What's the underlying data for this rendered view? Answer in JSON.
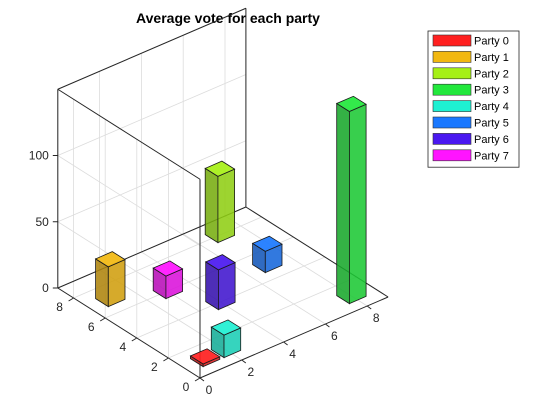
{
  "chart_data": {
    "type": "bar3",
    "title": "Average vote for each party",
    "xlabel": "",
    "ylabel": "",
    "zlabel": "",
    "xlim": [
      0,
      9
    ],
    "ylim": [
      0,
      9
    ],
    "zlim": [
      0,
      150
    ],
    "x_ticks": [
      "0",
      "2",
      "4",
      "6",
      "8"
    ],
    "y_ticks": [
      "0",
      "2",
      "4",
      "6",
      "8"
    ],
    "z_ticks": [
      "0",
      "50",
      "100"
    ],
    "grid": true,
    "legend_position": "top-right, outside",
    "series": [
      {
        "name": "Party 0",
        "x": 1,
        "y": 1,
        "value": 2,
        "color": "#ff2020"
      },
      {
        "name": "Party 1",
        "x": 1,
        "y": 7,
        "value": 30,
        "color": "#f2b810"
      },
      {
        "name": "Party 2",
        "x": 7,
        "y": 8,
        "value": 50,
        "color": "#a6f016"
      },
      {
        "name": "Party 3",
        "x": 8,
        "y": 1,
        "value": 145,
        "color": "#22e83c"
      },
      {
        "name": "Party 4",
        "x": 2,
        "y": 1,
        "value": 17,
        "color": "#1ef0d2"
      },
      {
        "name": "Party 5",
        "x": 7,
        "y": 5,
        "value": 16,
        "color": "#1a78ff"
      },
      {
        "name": "Party 6",
        "x": 4,
        "y": 4,
        "value": 30,
        "color": "#4a18f0"
      },
      {
        "name": "Party 7",
        "x": 3,
        "y": 6,
        "value": 17,
        "color": "#ff14ff"
      }
    ]
  }
}
